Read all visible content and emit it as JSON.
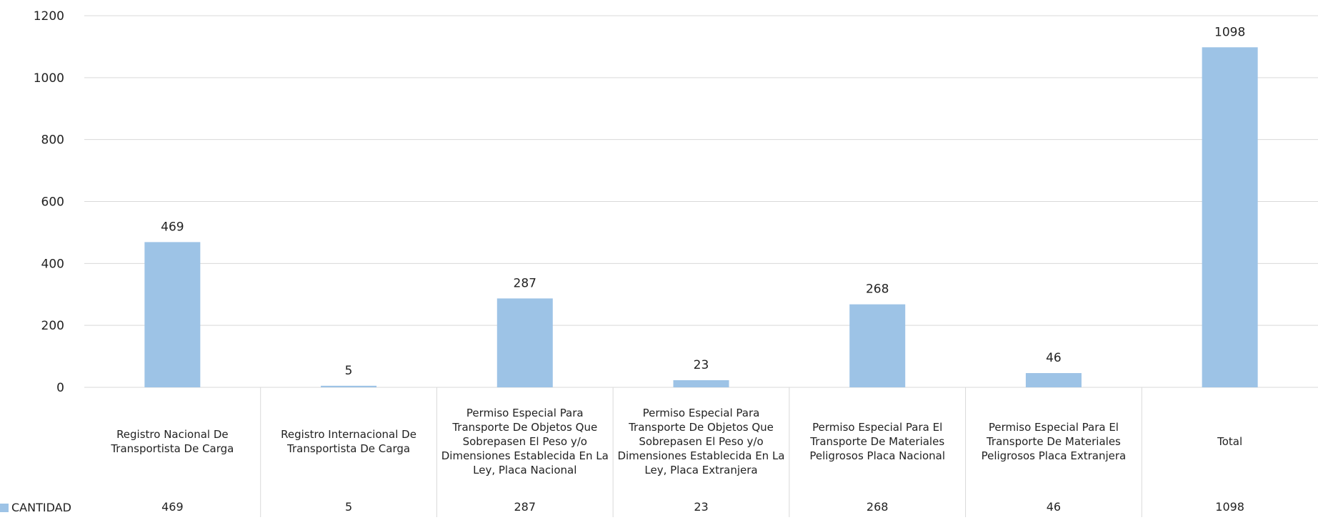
{
  "chart_data": {
    "type": "bar",
    "categories": [
      "Registro Nacional De Transportista De Carga",
      "Registro Internacional De Transportista De Carga",
      "Permiso Especial Para Transporte De Objetos Que Sobrepasen El Peso y/o Dimensiones Establecida En La Ley, Placa Nacional",
      "Permiso Especial Para Transporte De Objetos Que Sobrepasen El Peso y/o Dimensiones Establecida En La Ley, Placa Extranjera",
      "Permiso Especial Para El Transporte De Materiales Peligrosos Placa Nacional",
      "Permiso Especial Para El Transporte De Materiales Peligrosos Placa Extranjera",
      "Total"
    ],
    "series": [
      {
        "name": "CANTIDAD",
        "values": [
          469,
          5,
          287,
          23,
          268,
          46,
          1098
        ]
      }
    ],
    "data_labels": [
      "469",
      "5",
      "287",
      "23",
      "268",
      "46",
      "1098"
    ],
    "ylim": [
      0,
      1200
    ],
    "yticks": [
      "0",
      "200",
      "400",
      "600",
      "800",
      "1000",
      "1200"
    ],
    "grid": true,
    "legend": "bottom-left, in data table",
    "data_table": true,
    "bar_color": "#9DC3E6",
    "grid_color": "#D9D9D9"
  }
}
